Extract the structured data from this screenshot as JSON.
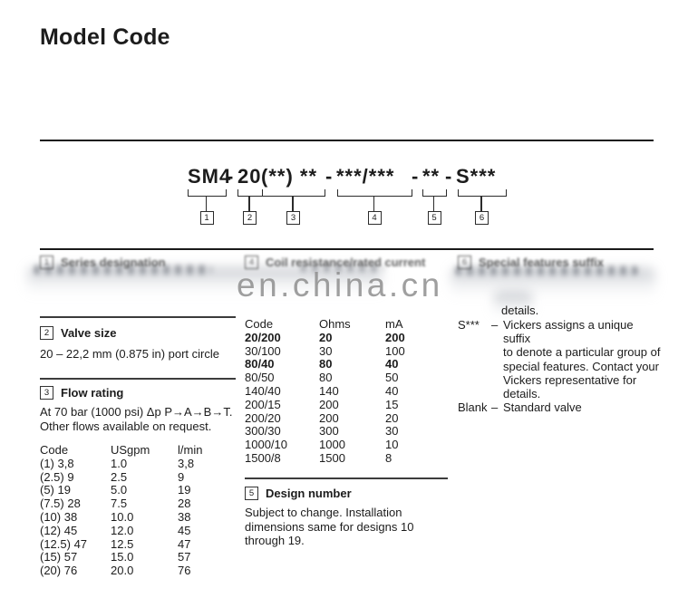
{
  "title": "Model Code",
  "watermark": "en.china.cn",
  "model_code": {
    "separator": "-",
    "segments": [
      {
        "text": "SM4",
        "num": "1"
      },
      {
        "text": "20",
        "num": "2"
      },
      {
        "text": "(**) **",
        "num": "3"
      },
      {
        "text": "***/***",
        "num": "4"
      },
      {
        "text": "**",
        "num": "5"
      },
      {
        "text": "S***",
        "num": "6"
      }
    ]
  },
  "sections": {
    "series": {
      "num": "1",
      "title": "Series designation"
    },
    "valve_size": {
      "num": "2",
      "title": "Valve size",
      "text": "20 – 22,2 mm (0.875 in) port circle"
    },
    "flow": {
      "num": "3",
      "title": "Flow rating",
      "note1": "At 70 bar (1000 psi) Δp P→A→B→T.",
      "note2": "Other flows available on request.",
      "table": {
        "headers": [
          "Code",
          "USgpm",
          "l/min"
        ],
        "rows": [
          [
            "(1) 3,8",
            "1.0",
            "3,8"
          ],
          [
            "(2.5) 9",
            "2.5",
            "9"
          ],
          [
            "(5) 19",
            "5.0",
            "19"
          ],
          [
            "(7.5) 28",
            "7.5",
            "28"
          ],
          [
            "(10) 38",
            "10.0",
            "38"
          ],
          [
            "(12) 45",
            "12.0",
            "45"
          ],
          [
            "(12.5) 47",
            "12.5",
            "47"
          ],
          [
            "(15) 57",
            "15.0",
            "57"
          ],
          [
            "(20) 76",
            "20.0",
            "76"
          ]
        ]
      }
    },
    "coil": {
      "num": "4",
      "title": "Coil resistance/rated current",
      "table": {
        "headers": [
          "Code",
          "Ohms",
          "mA"
        ],
        "bold_rows": [
          0,
          2
        ],
        "rows": [
          [
            "20/200",
            "20",
            "200"
          ],
          [
            "30/100",
            "30",
            "100"
          ],
          [
            "80/40",
            "80",
            "40"
          ],
          [
            "80/50",
            "80",
            "50"
          ],
          [
            "140/40",
            "140",
            "40"
          ],
          [
            "200/15",
            "200",
            "15"
          ],
          [
            "200/20",
            "200",
            "20"
          ],
          [
            "300/30",
            "300",
            "30"
          ],
          [
            "1000/10",
            "1000",
            "10"
          ],
          [
            "1500/8",
            "1500",
            "8"
          ]
        ]
      }
    },
    "design": {
      "num": "5",
      "title": "Design number",
      "text": "Subject to change. Installation dimensions same for designs 10 through 19."
    },
    "special": {
      "num": "6",
      "title": "Special features suffix",
      "details_fragment": "details.",
      "items": [
        {
          "label": "S***",
          "dash": "–",
          "lines": [
            "Vickers assigns a unique suffix",
            "to denote a particular group of",
            "special features. Contact your",
            "Vickers representative for",
            "details."
          ]
        },
        {
          "label": "Blank",
          "dash": "–",
          "lines": [
            "Standard valve"
          ]
        }
      ]
    }
  }
}
